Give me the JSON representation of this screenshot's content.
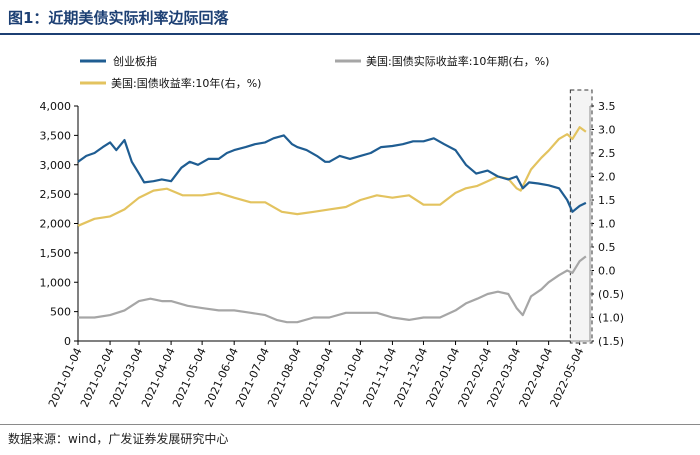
{
  "title": "图1：近期美债实际利率边际回落",
  "source": "数据来源：wind，广发证券发展研究中心",
  "colors": {
    "title": "#1c3f73",
    "series_chinext": "#1f5d92",
    "series_real": "#a6a6a6",
    "series_nominal": "#e3c35f",
    "neg_label": "#c00000"
  },
  "chart_data": {
    "type": "line",
    "legend": [
      "创业板指",
      "美国:国债实际收益率:10年期(右，%)",
      "美国:国债收益率:10年(右，%)"
    ],
    "x_ticks": [
      "2021-01-04",
      "2021-02-04",
      "2021-03-04",
      "2021-04-04",
      "2021-05-04",
      "2021-06-04",
      "2021-07-04",
      "2021-08-04",
      "2021-09-04",
      "2021-10-04",
      "2021-11-04",
      "2021-12-04",
      "2022-01-04",
      "2022-02-04",
      "2022-03-04",
      "2022-04-04",
      "2022-05-04"
    ],
    "y_left": {
      "ticks": [
        "0",
        "500",
        "1,000",
        "1,500",
        "2,000",
        "2,500",
        "3,000",
        "3,500",
        "4,000"
      ],
      "ylim": [
        0,
        4000
      ]
    },
    "y_right": {
      "ticks": [
        "(1.5)",
        "(1.0)",
        "(0.5)",
        "0.0",
        "0.5",
        "1.0",
        "1.5",
        "2.0",
        "2.5",
        "3.0",
        "3.5"
      ],
      "ylim": [
        -1.5,
        3.5
      ],
      "negative_color": "#c00000"
    },
    "highlight": "dashed box over late April - early May 2022",
    "series": [
      {
        "name": "创业板指",
        "axis": "left",
        "x": [
          "2021-01-04",
          "2021-01-12",
          "2021-01-20",
          "2021-01-28",
          "2021-02-04",
          "2021-02-10",
          "2021-02-18",
          "2021-02-25",
          "2021-03-04",
          "2021-03-09",
          "2021-03-18",
          "2021-03-26",
          "2021-04-04",
          "2021-04-14",
          "2021-04-22",
          "2021-04-30",
          "2021-05-10",
          "2021-05-20",
          "2021-05-28",
          "2021-06-04",
          "2021-06-15",
          "2021-06-24",
          "2021-07-04",
          "2021-07-12",
          "2021-07-22",
          "2021-07-30",
          "2021-08-04",
          "2021-08-13",
          "2021-08-23",
          "2021-08-31",
          "2021-09-04",
          "2021-09-14",
          "2021-09-24",
          "2021-10-04",
          "2021-10-14",
          "2021-10-24",
          "2021-11-04",
          "2021-11-14",
          "2021-11-24",
          "2021-12-04",
          "2021-12-14",
          "2021-12-24",
          "2022-01-04",
          "2022-01-14",
          "2022-01-24",
          "2022-02-04",
          "2022-02-14",
          "2022-02-24",
          "2022-03-04",
          "2022-03-10",
          "2022-03-16",
          "2022-03-25",
          "2022-04-04",
          "2022-04-14",
          "2022-04-22",
          "2022-04-27",
          "2022-05-04",
          "2022-05-10"
        ],
        "values": [
          3050,
          3150,
          3200,
          3300,
          3380,
          3250,
          3420,
          3050,
          2850,
          2700,
          2720,
          2750,
          2720,
          2950,
          3050,
          3000,
          3100,
          3100,
          3200,
          3250,
          3300,
          3350,
          3380,
          3450,
          3500,
          3350,
          3300,
          3250,
          3150,
          3050,
          3050,
          3150,
          3100,
          3150,
          3200,
          3300,
          3320,
          3350,
          3400,
          3400,
          3450,
          3350,
          3250,
          3000,
          2850,
          2900,
          2800,
          2750,
          2800,
          2600,
          2700,
          2680,
          2650,
          2600,
          2400,
          2200,
          2300,
          2350
        ]
      },
      {
        "name": "美国:国债实际收益率:10年期(右，%)",
        "axis": "right",
        "x": [
          "2021-01-04",
          "2021-01-20",
          "2021-02-04",
          "2021-02-18",
          "2021-03-04",
          "2021-03-15",
          "2021-03-26",
          "2021-04-04",
          "2021-04-20",
          "2021-05-04",
          "2021-05-20",
          "2021-06-04",
          "2021-06-20",
          "2021-07-04",
          "2021-07-15",
          "2021-07-25",
          "2021-08-04",
          "2021-08-20",
          "2021-09-04",
          "2021-09-20",
          "2021-10-04",
          "2021-10-20",
          "2021-11-04",
          "2021-11-20",
          "2021-12-04",
          "2021-12-20",
          "2022-01-04",
          "2022-01-14",
          "2022-01-25",
          "2022-02-04",
          "2022-02-14",
          "2022-02-24",
          "2022-03-04",
          "2022-03-10",
          "2022-03-18",
          "2022-03-28",
          "2022-04-04",
          "2022-04-14",
          "2022-04-22",
          "2022-04-27",
          "2022-05-04",
          "2022-05-10"
        ],
        "values": [
          -1.0,
          -1.0,
          -0.95,
          -0.85,
          -0.65,
          -0.6,
          -0.65,
          -0.65,
          -0.75,
          -0.8,
          -0.85,
          -0.85,
          -0.9,
          -0.95,
          -1.05,
          -1.1,
          -1.1,
          -1.0,
          -1.0,
          -0.9,
          -0.9,
          -0.9,
          -1.0,
          -1.05,
          -1.0,
          -1.0,
          -0.85,
          -0.7,
          -0.6,
          -0.5,
          -0.45,
          -0.5,
          -0.8,
          -0.95,
          -0.55,
          -0.4,
          -0.25,
          -0.1,
          0.0,
          -0.05,
          0.2,
          0.3
        ]
      },
      {
        "name": "美国:国债收益率:10年(右，%)",
        "axis": "right",
        "x": [
          "2021-01-04",
          "2021-01-20",
          "2021-02-04",
          "2021-02-18",
          "2021-03-04",
          "2021-03-18",
          "2021-03-31",
          "2021-04-15",
          "2021-05-04",
          "2021-05-20",
          "2021-06-04",
          "2021-06-20",
          "2021-07-04",
          "2021-07-20",
          "2021-08-04",
          "2021-08-20",
          "2021-09-04",
          "2021-09-20",
          "2021-10-04",
          "2021-10-20",
          "2021-11-04",
          "2021-11-20",
          "2021-12-04",
          "2021-12-20",
          "2022-01-04",
          "2022-01-14",
          "2022-01-25",
          "2022-02-04",
          "2022-02-14",
          "2022-02-24",
          "2022-03-04",
          "2022-03-08",
          "2022-03-18",
          "2022-03-28",
          "2022-04-04",
          "2022-04-14",
          "2022-04-22",
          "2022-04-27",
          "2022-05-04",
          "2022-05-10"
        ],
        "values": [
          0.95,
          1.1,
          1.15,
          1.3,
          1.55,
          1.7,
          1.74,
          1.6,
          1.6,
          1.65,
          1.55,
          1.45,
          1.45,
          1.25,
          1.2,
          1.25,
          1.3,
          1.35,
          1.5,
          1.6,
          1.55,
          1.6,
          1.4,
          1.4,
          1.65,
          1.75,
          1.8,
          1.9,
          2.0,
          1.95,
          1.75,
          1.7,
          2.15,
          2.4,
          2.55,
          2.8,
          2.9,
          2.8,
          3.05,
          2.95
        ]
      }
    ]
  }
}
